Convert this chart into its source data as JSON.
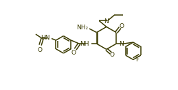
{
  "background_color": "#ffffff",
  "bond_color": "#3a3a00",
  "line_width": 1.1,
  "font_size": 6.5,
  "fig_width": 2.59,
  "fig_height": 1.32,
  "dpi": 100,
  "xlim": [
    0,
    10.2
  ],
  "ylim": [
    0,
    5.2
  ]
}
